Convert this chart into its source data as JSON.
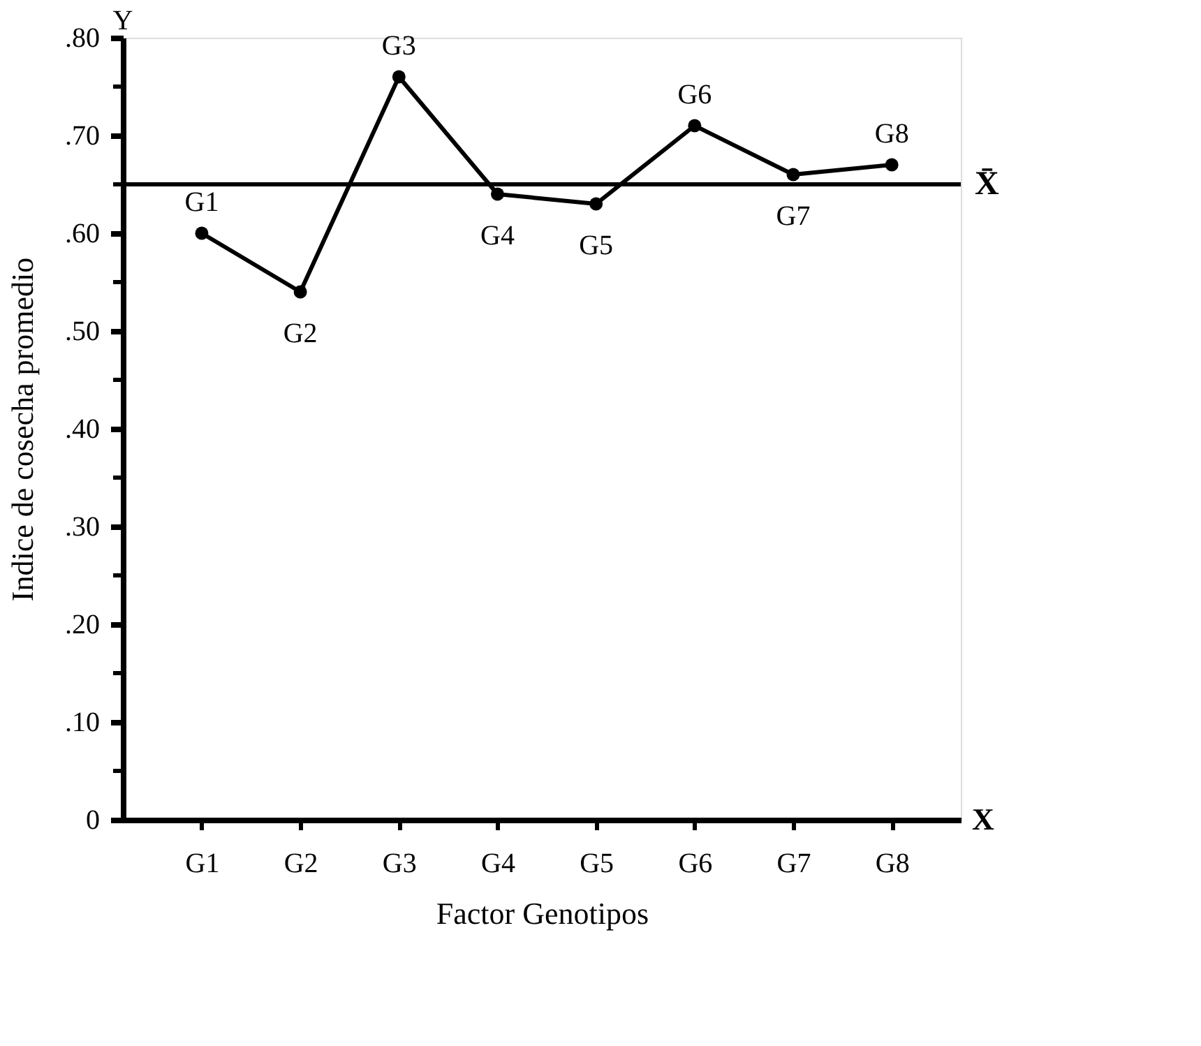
{
  "chart_data": {
    "type": "line",
    "xlabel": "Factor Genotipos",
    "ylabel": "Indice de cosecha promedio",
    "categories": [
      "G1",
      "G2",
      "G3",
      "G4",
      "G5",
      "G6",
      "G7",
      "G8"
    ],
    "series": [
      {
        "color": "#000000",
        "values": [
          0.6,
          0.54,
          0.76,
          0.64,
          0.63,
          0.71,
          0.66,
          0.67
        ]
      }
    ],
    "ylim": [
      0,
      0.8
    ],
    "yticks": [
      0,
      {
        "value": 0.05,
        "label": null
      },
      {
        "value": 0.1,
        "label": ".10"
      },
      {
        "value": 0.15,
        "label": null
      },
      {
        "value": 0.2,
        "label": ".20"
      },
      {
        "value": 0.25,
        "label": null
      },
      {
        "value": 0.3,
        "label": ".30"
      },
      {
        "value": 0.35,
        "label": null
      },
      {
        "value": 0.4,
        "label": ".40"
      },
      {
        "value": 0.45,
        "label": null
      },
      {
        "value": 0.5,
        "label": ".50"
      },
      {
        "value": 0.55,
        "label": null
      },
      {
        "value": 0.6,
        "label": ".60"
      },
      {
        "value": 0.65,
        "label": null
      },
      {
        "value": 0.7,
        "label": ".70"
      },
      {
        "value": 0.75,
        "label": null
      },
      {
        "value": 0.8,
        "label": ".80"
      }
    ],
    "ref_lines": [
      {
        "axis": "y",
        "value": 0.65,
        "label": "X̄",
        "color": "#000000"
      }
    ],
    "annotations": [
      "Y",
      "X",
      {
        "text": "G1",
        "x": "G1",
        "y": 0.6
      },
      {
        "text": "G2",
        "x": "G2",
        "y": 0.54
      },
      {
        "text": "G3",
        "x": "G3",
        "y": 0.76
      },
      {
        "text": "G4",
        "x": "G4",
        "y": 0.64
      },
      {
        "text": "G5",
        "x": "G5",
        "y": 0.63
      },
      {
        "text": "G6",
        "x": "G6",
        "y": 0.71
      },
      {
        "text": "G7",
        "x": "G7",
        "y": 0.66
      },
      {
        "text": "G8",
        "x": "G8",
        "y": 0.67
      }
    ],
    "marker": "circle",
    "grid": false
  }
}
